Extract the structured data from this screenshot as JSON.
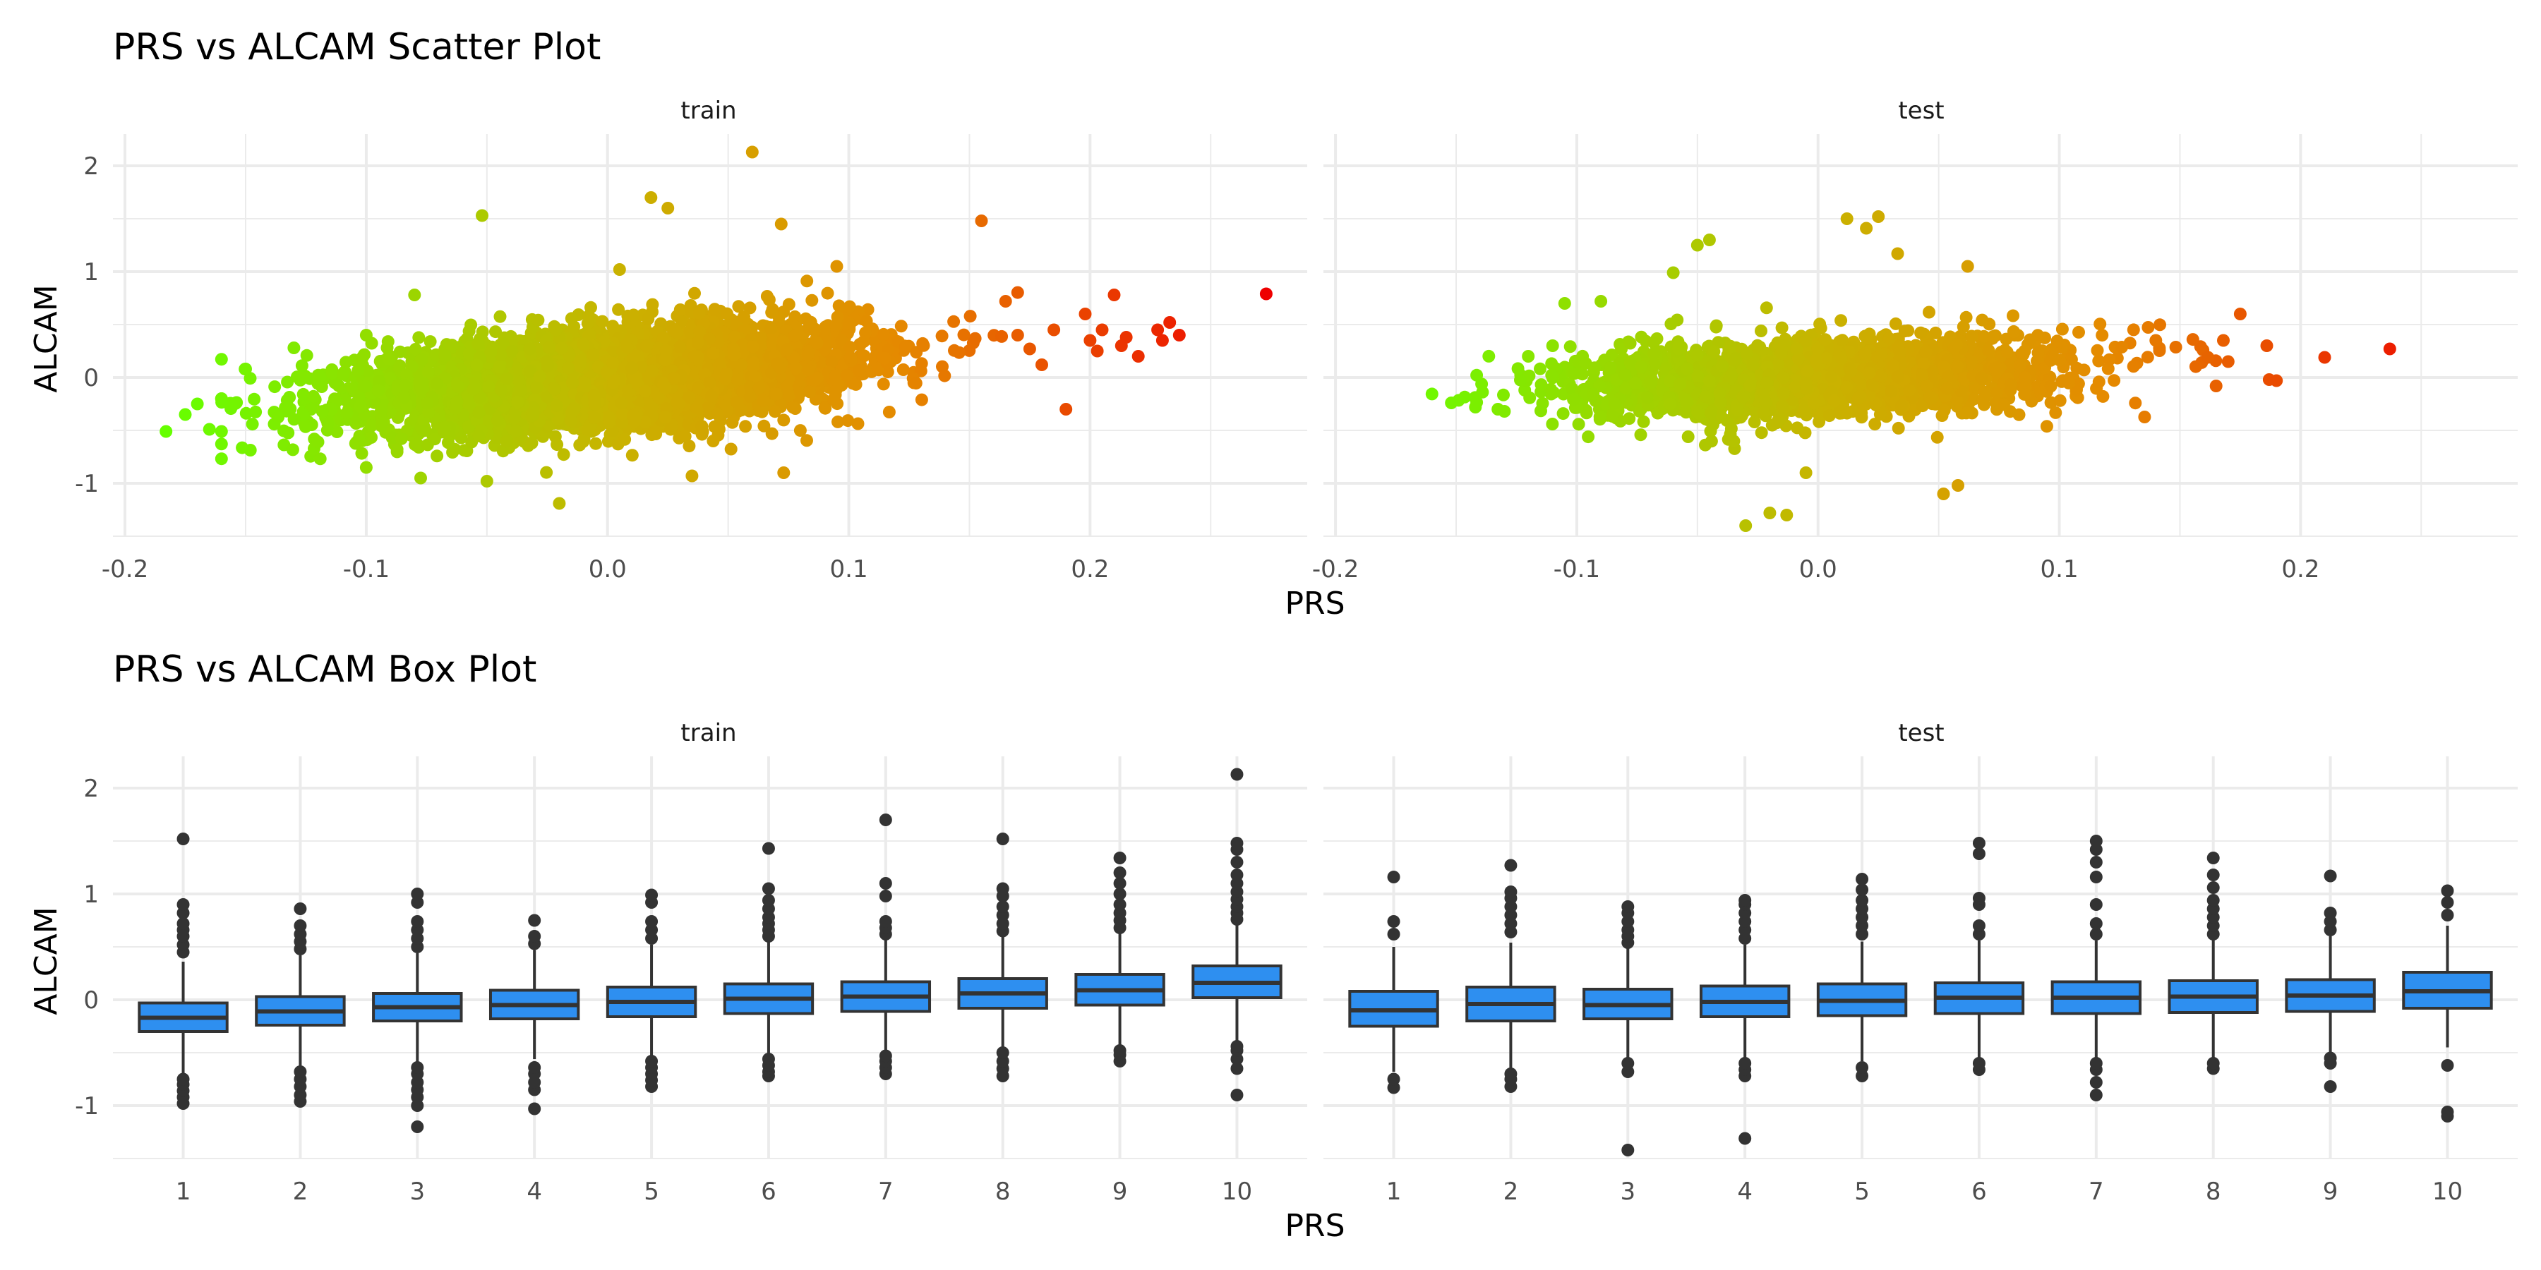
{
  "chart_data": [
    {
      "type": "scatter",
      "title": "PRS vs ALCAM Scatter Plot",
      "xlabel": "PRS",
      "ylabel": "ALCAM",
      "panels": [
        "train",
        "test"
      ],
      "x_ticks": [
        -0.2,
        -0.1,
        0.0,
        0.1,
        0.2
      ],
      "x_tick_labels": [
        "-0.2",
        "-0.1",
        "0.0",
        "0.1",
        "0.2"
      ],
      "y_ticks": [
        -1,
        0,
        1,
        2
      ],
      "y_tick_labels": [
        "-1",
        "0",
        "1",
        "2"
      ],
      "xlim": [
        -0.205,
        0.29
      ],
      "ylim": [
        -1.5,
        2.3
      ],
      "grid": true,
      "color_by": "PRS",
      "color_scale": [
        "#66ff00",
        "#c8b400",
        "#e58a00",
        "#ee0000"
      ],
      "color_domain": [
        -0.18,
        0.0,
        0.12,
        0.27
      ],
      "slope": 1.9,
      "series": [
        {
          "panel": "train",
          "n": 5000,
          "x_mean": 0.0,
          "x_sd": 0.05,
          "y_mean": 0.0,
          "y_sd": 0.22,
          "notable_points": [
            {
              "x": -0.183,
              "y": -0.51
            },
            {
              "x": -0.175,
              "y": -0.35
            },
            {
              "x": -0.17,
              "y": -0.25
            },
            {
              "x": -0.165,
              "y": -0.49
            },
            {
              "x": -0.15,
              "y": 0.08
            },
            {
              "x": -0.13,
              "y": 0.28
            },
            {
              "x": -0.12,
              "y": -0.61
            },
            {
              "x": -0.1,
              "y": -0.85
            },
            {
              "x": -0.1,
              "y": 0.4
            },
            {
              "x": -0.08,
              "y": 0.78
            },
            {
              "x": -0.052,
              "y": 1.53
            },
            {
              "x": -0.05,
              "y": -0.98
            },
            {
              "x": -0.02,
              "y": -1.19
            },
            {
              "x": 0.005,
              "y": 1.02
            },
            {
              "x": 0.018,
              "y": 1.7
            },
            {
              "x": 0.025,
              "y": 1.6
            },
            {
              "x": 0.035,
              "y": -0.93
            },
            {
              "x": 0.06,
              "y": 2.13
            },
            {
              "x": 0.072,
              "y": 1.45
            },
            {
              "x": 0.073,
              "y": -0.9
            },
            {
              "x": 0.095,
              "y": 1.05
            },
            {
              "x": 0.155,
              "y": 1.48
            },
            {
              "x": 0.165,
              "y": 0.72
            },
            {
              "x": 0.17,
              "y": 0.4
            },
            {
              "x": 0.175,
              "y": 0.27
            },
            {
              "x": 0.18,
              "y": 0.12
            },
            {
              "x": 0.185,
              "y": 0.45
            },
            {
              "x": 0.19,
              "y": -0.3
            },
            {
              "x": 0.198,
              "y": 0.6
            },
            {
              "x": 0.2,
              "y": 0.35
            },
            {
              "x": 0.203,
              "y": 0.25
            },
            {
              "x": 0.205,
              "y": 0.45
            },
            {
              "x": 0.21,
              "y": 0.78
            },
            {
              "x": 0.213,
              "y": 0.3
            },
            {
              "x": 0.215,
              "y": 0.38
            },
            {
              "x": 0.22,
              "y": 0.2
            },
            {
              "x": 0.228,
              "y": 0.45
            },
            {
              "x": 0.23,
              "y": 0.35
            },
            {
              "x": 0.233,
              "y": 0.52
            },
            {
              "x": 0.237,
              "y": 0.4
            },
            {
              "x": 0.273,
              "y": 0.79
            }
          ]
        },
        {
          "panel": "test",
          "n": 2200,
          "x_mean": 0.0,
          "x_sd": 0.05,
          "y_mean": 0.0,
          "y_sd": 0.18,
          "notable_points": [
            {
              "x": -0.152,
              "y": -0.24
            },
            {
              "x": -0.142,
              "y": -0.28
            },
            {
              "x": -0.13,
              "y": -0.32
            },
            {
              "x": -0.11,
              "y": 0.3
            },
            {
              "x": -0.105,
              "y": 0.7
            },
            {
              "x": -0.09,
              "y": 0.72
            },
            {
              "x": -0.06,
              "y": 0.99
            },
            {
              "x": -0.05,
              "y": 1.25
            },
            {
              "x": -0.045,
              "y": 1.3
            },
            {
              "x": -0.03,
              "y": -1.4
            },
            {
              "x": -0.02,
              "y": -1.28
            },
            {
              "x": -0.013,
              "y": -1.3
            },
            {
              "x": -0.005,
              "y": -0.9
            },
            {
              "x": 0.012,
              "y": 1.5
            },
            {
              "x": 0.02,
              "y": 1.41
            },
            {
              "x": 0.025,
              "y": 1.52
            },
            {
              "x": 0.033,
              "y": 1.17
            },
            {
              "x": 0.052,
              "y": -1.1
            },
            {
              "x": 0.058,
              "y": -1.02
            },
            {
              "x": 0.062,
              "y": 1.05
            },
            {
              "x": 0.14,
              "y": 0.35
            },
            {
              "x": 0.165,
              "y": -0.08
            },
            {
              "x": 0.168,
              "y": 0.35
            },
            {
              "x": 0.17,
              "y": 0.15
            },
            {
              "x": 0.175,
              "y": 0.6
            },
            {
              "x": 0.186,
              "y": 0.3
            },
            {
              "x": 0.187,
              "y": -0.02
            },
            {
              "x": 0.19,
              "y": -0.03
            },
            {
              "x": 0.21,
              "y": 0.19
            },
            {
              "x": 0.237,
              "y": 0.27
            }
          ]
        }
      ]
    },
    {
      "type": "box",
      "title": "PRS vs ALCAM Box Plot",
      "xlabel": "PRS",
      "ylabel": "ALCAM",
      "panels": [
        "train",
        "test"
      ],
      "categories": [
        "1",
        "2",
        "3",
        "4",
        "5",
        "6",
        "7",
        "8",
        "9",
        "10"
      ],
      "y_ticks": [
        -1,
        0,
        1,
        2
      ],
      "y_tick_labels": [
        "-1",
        "0",
        "1",
        "2"
      ],
      "ylim": [
        -1.5,
        2.3
      ],
      "grid": true,
      "box_color": "#2e8ff0",
      "series": [
        {
          "panel": "train",
          "boxes": [
            {
              "q1": -0.3,
              "median": -0.17,
              "q3": -0.03,
              "whisker_low": -0.7,
              "whisker_high": 0.36,
              "outliers": [
                -0.98,
                -0.92,
                -0.86,
                -0.8,
                -0.75,
                0.45,
                0.52,
                0.6,
                0.66,
                0.72,
                0.82,
                0.9,
                1.52
              ]
            },
            {
              "q1": -0.24,
              "median": -0.11,
              "q3": 0.03,
              "whisker_low": -0.63,
              "whisker_high": 0.42,
              "outliers": [
                -0.96,
                -0.9,
                -0.82,
                -0.75,
                -0.68,
                0.48,
                0.55,
                0.62,
                0.7,
                0.86
              ]
            },
            {
              "q1": -0.2,
              "median": -0.07,
              "q3": 0.06,
              "whisker_low": -0.59,
              "whisker_high": 0.44,
              "outliers": [
                -1.2,
                -1.0,
                -0.92,
                -0.85,
                -0.78,
                -0.7,
                -0.64,
                0.5,
                0.58,
                0.66,
                0.74,
                0.92,
                1.0
              ]
            },
            {
              "q1": -0.18,
              "median": -0.05,
              "q3": 0.09,
              "whisker_low": -0.56,
              "whisker_high": 0.47,
              "outliers": [
                -1.03,
                -0.85,
                -0.78,
                -0.7,
                -0.64,
                0.53,
                0.6,
                0.75
              ]
            },
            {
              "q1": -0.16,
              "median": -0.02,
              "q3": 0.12,
              "whisker_low": -0.55,
              "whisker_high": 0.52,
              "outliers": [
                -0.82,
                -0.76,
                -0.7,
                -0.64,
                -0.58,
                0.58,
                0.66,
                0.74,
                0.92,
                0.99
              ]
            },
            {
              "q1": -0.13,
              "median": 0.01,
              "q3": 0.15,
              "whisker_low": -0.52,
              "whisker_high": 0.55,
              "outliers": [
                -0.72,
                -0.68,
                -0.62,
                -0.56,
                0.6,
                0.66,
                0.72,
                0.78,
                0.86,
                0.94,
                1.05,
                1.43
              ]
            },
            {
              "q1": -0.11,
              "median": 0.03,
              "q3": 0.17,
              "whisker_low": -0.5,
              "whisker_high": 0.58,
              "outliers": [
                -0.7,
                -0.64,
                -0.58,
                -0.53,
                0.62,
                0.68,
                0.74,
                0.98,
                1.1,
                1.7
              ]
            },
            {
              "q1": -0.08,
              "median": 0.06,
              "q3": 0.2,
              "whisker_low": -0.46,
              "whisker_high": 0.6,
              "outliers": [
                -0.72,
                -0.65,
                -0.58,
                -0.5,
                0.65,
                0.72,
                0.8,
                0.88,
                0.98,
                1.05,
                1.52
              ]
            },
            {
              "q1": -0.05,
              "median": 0.09,
              "q3": 0.24,
              "whisker_low": -0.45,
              "whisker_high": 0.64,
              "outliers": [
                -0.58,
                -0.52,
                -0.48,
                0.68,
                0.75,
                0.82,
                0.9,
                1.0,
                1.1,
                1.2,
                1.34
              ]
            },
            {
              "q1": 0.02,
              "median": 0.16,
              "q3": 0.32,
              "whisker_low": -0.4,
              "whisker_high": 0.72,
              "outliers": [
                -0.9,
                -0.65,
                -0.56,
                -0.48,
                -0.44,
                0.76,
                0.82,
                0.88,
                0.95,
                1.02,
                1.1,
                1.18,
                1.3,
                1.42,
                1.48,
                2.13
              ]
            }
          ]
        },
        {
          "panel": "test",
          "boxes": [
            {
              "q1": -0.25,
              "median": -0.1,
              "q3": 0.08,
              "whisker_low": -0.68,
              "whisker_high": 0.5,
              "outliers": [
                -0.83,
                -0.75,
                0.62,
                0.74,
                1.16
              ]
            },
            {
              "q1": -0.2,
              "median": -0.04,
              "q3": 0.12,
              "whisker_low": -0.66,
              "whisker_high": 0.54,
              "outliers": [
                -0.82,
                -0.75,
                -0.7,
                0.64,
                0.72,
                0.8,
                0.88,
                0.96,
                1.02,
                1.27
              ]
            },
            {
              "q1": -0.18,
              "median": -0.05,
              "q3": 0.1,
              "whisker_low": -0.56,
              "whisker_high": 0.49,
              "outliers": [
                -1.42,
                -0.68,
                -0.6,
                0.54,
                0.6,
                0.66,
                0.74,
                0.82,
                0.88
              ]
            },
            {
              "q1": -0.16,
              "median": -0.02,
              "q3": 0.13,
              "whisker_low": -0.56,
              "whisker_high": 0.52,
              "outliers": [
                -1.31,
                -0.72,
                -0.66,
                -0.6,
                0.58,
                0.66,
                0.74,
                0.82,
                0.9,
                0.94
              ]
            },
            {
              "q1": -0.15,
              "median": -0.01,
              "q3": 0.15,
              "whisker_low": -0.58,
              "whisker_high": 0.55,
              "outliers": [
                -0.72,
                -0.64,
                0.62,
                0.7,
                0.78,
                0.86,
                0.94,
                1.04,
                1.14
              ]
            },
            {
              "q1": -0.13,
              "median": 0.02,
              "q3": 0.16,
              "whisker_low": -0.56,
              "whisker_high": 0.56,
              "outliers": [
                -0.66,
                -0.6,
                0.62,
                0.7,
                0.9,
                0.96,
                1.38,
                1.48
              ]
            },
            {
              "q1": -0.13,
              "median": 0.02,
              "q3": 0.17,
              "whisker_low": -0.56,
              "whisker_high": 0.56,
              "outliers": [
                -0.9,
                -0.78,
                -0.66,
                -0.6,
                0.62,
                0.72,
                0.9,
                1.16,
                1.3,
                1.42,
                1.5
              ]
            },
            {
              "q1": -0.12,
              "median": 0.03,
              "q3": 0.18,
              "whisker_low": -0.56,
              "whisker_high": 0.58,
              "outliers": [
                -0.65,
                -0.6,
                0.62,
                0.7,
                0.78,
                0.86,
                0.94,
                1.06,
                1.18,
                1.34
              ]
            },
            {
              "q1": -0.11,
              "median": 0.04,
              "q3": 0.19,
              "whisker_low": -0.52,
              "whisker_high": 0.6,
              "outliers": [
                -0.82,
                -0.6,
                -0.55,
                0.66,
                0.74,
                0.82,
                1.17
              ]
            },
            {
              "q1": -0.08,
              "median": 0.08,
              "q3": 0.26,
              "whisker_low": -0.45,
              "whisker_high": 0.7,
              "outliers": [
                -1.1,
                -1.06,
                -0.62,
                0.8,
                0.92,
                1.03
              ]
            }
          ]
        }
      ]
    }
  ]
}
